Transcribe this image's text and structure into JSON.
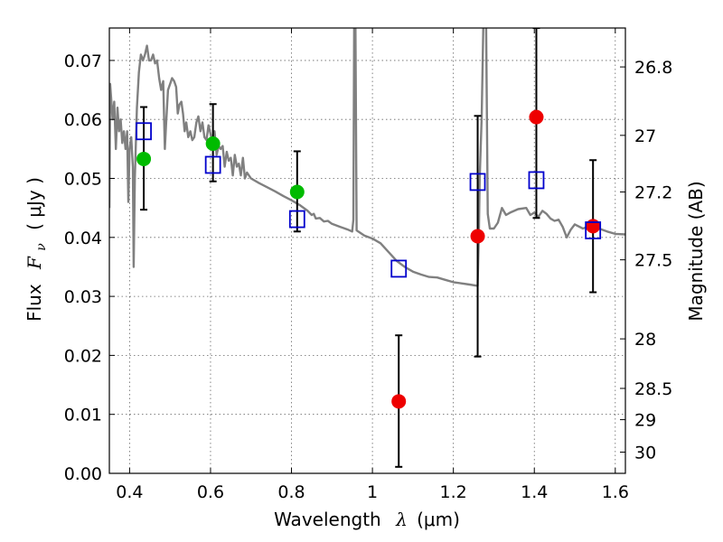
{
  "chart_data": {
    "type": "scatter",
    "xlabel": "Wavelength",
    "xlabel_symbol": "λ",
    "xlabel_unit": "(μm)",
    "ylabel": "Flux",
    "ylabel_symbol": "F",
    "ylabel_sub": "ν",
    "ylabel_unit": "( μJy )",
    "y2label": "Magnitude (AB)",
    "xlim": [
      0.35,
      1.625
    ],
    "ylim": [
      0.0,
      0.0755
    ],
    "grid": true,
    "xticks": [
      0.4,
      0.6,
      0.8,
      1.0,
      1.2,
      1.4,
      1.6
    ],
    "xtick_labels": [
      "0.4",
      "0.6",
      "0.8",
      "1",
      "1.2",
      "1.4",
      "1.6"
    ],
    "yticks": [
      0.0,
      0.01,
      0.02,
      0.03,
      0.04,
      0.05,
      0.06,
      0.07
    ],
    "ytick_labels": [
      "0.00",
      "0.01",
      "0.02",
      "0.03",
      "0.04",
      "0.05",
      "0.06",
      "0.07"
    ],
    "y2ticks": [
      {
        "label": "26.8",
        "flux": 0.0689
      },
      {
        "label": "27",
        "flux": 0.0573
      },
      {
        "label": "27.2",
        "flux": 0.0477
      },
      {
        "label": "27.5",
        "flux": 0.0362
      },
      {
        "label": "28",
        "flux": 0.0228
      },
      {
        "label": "28.5",
        "flux": 0.0144
      },
      {
        "label": "29",
        "flux": 0.0091
      },
      {
        "label": "30",
        "flux": 0.0036
      }
    ],
    "series": [
      {
        "marker": "circle",
        "color": "#00bb00",
        "points": [
          {
            "x": 0.435,
            "y": 0.0533
          },
          {
            "x": 0.606,
            "y": 0.0559
          },
          {
            "x": 0.814,
            "y": 0.0477
          }
        ]
      },
      {
        "marker": "circle",
        "color": "#ee0000",
        "points": [
          {
            "x": 1.065,
            "y": 0.0122
          },
          {
            "x": 1.26,
            "y": 0.0402
          },
          {
            "x": 1.405,
            "y": 0.0604
          },
          {
            "x": 1.545,
            "y": 0.0419
          }
        ]
      },
      {
        "marker": "open-square",
        "color": "#0000cc",
        "points": [
          {
            "x": 0.435,
            "y": 0.058
          },
          {
            "x": 0.606,
            "y": 0.0523
          },
          {
            "x": 0.814,
            "y": 0.0431
          },
          {
            "x": 1.065,
            "y": 0.0347
          },
          {
            "x": 1.26,
            "y": 0.0494
          },
          {
            "x": 1.405,
            "y": 0.0497
          },
          {
            "x": 1.545,
            "y": 0.0412
          }
        ]
      }
    ],
    "error_bars": [
      {
        "x": 0.435,
        "low": 0.0447,
        "high": 0.0621
      },
      {
        "x": 0.606,
        "low": 0.0495,
        "high": 0.0626
      },
      {
        "x": 0.814,
        "low": 0.041,
        "high": 0.0546
      },
      {
        "x": 1.065,
        "low": 0.0011,
        "high": 0.0234
      },
      {
        "x": 1.26,
        "low": 0.0198,
        "high": 0.0606
      },
      {
        "x": 1.405,
        "low": 0.0433,
        "high": 0.0755
      },
      {
        "x": 1.545,
        "low": 0.0307,
        "high": 0.0531
      }
    ],
    "model_spectrum": {
      "color": "#808080",
      "points": [
        [
          0.35,
          0.045
        ],
        [
          0.352,
          0.066
        ],
        [
          0.358,
          0.06
        ],
        [
          0.362,
          0.063
        ],
        [
          0.366,
          0.055
        ],
        [
          0.37,
          0.062
        ],
        [
          0.374,
          0.058
        ],
        [
          0.378,
          0.06
        ],
        [
          0.382,
          0.056
        ],
        [
          0.386,
          0.058
        ],
        [
          0.39,
          0.055
        ],
        [
          0.394,
          0.058
        ],
        [
          0.397,
          0.046
        ],
        [
          0.4,
          0.055
        ],
        [
          0.404,
          0.057
        ],
        [
          0.408,
          0.052
        ],
        [
          0.41,
          0.035
        ],
        [
          0.413,
          0.05
        ],
        [
          0.418,
          0.062
        ],
        [
          0.423,
          0.068
        ],
        [
          0.428,
          0.071
        ],
        [
          0.433,
          0.07
        ],
        [
          0.438,
          0.071
        ],
        [
          0.443,
          0.0725
        ],
        [
          0.448,
          0.07
        ],
        [
          0.453,
          0.07
        ],
        [
          0.458,
          0.071
        ],
        [
          0.463,
          0.0695
        ],
        [
          0.468,
          0.07
        ],
        [
          0.473,
          0.067
        ],
        [
          0.478,
          0.065
        ],
        [
          0.483,
          0.0665
        ],
        [
          0.487,
          0.055
        ],
        [
          0.49,
          0.059
        ],
        [
          0.495,
          0.065
        ],
        [
          0.5,
          0.066
        ],
        [
          0.505,
          0.067
        ],
        [
          0.51,
          0.0665
        ],
        [
          0.515,
          0.0655
        ],
        [
          0.519,
          0.061
        ],
        [
          0.523,
          0.0625
        ],
        [
          0.528,
          0.063
        ],
        [
          0.532,
          0.061
        ],
        [
          0.536,
          0.058
        ],
        [
          0.54,
          0.0595
        ],
        [
          0.545,
          0.057
        ],
        [
          0.55,
          0.058
        ],
        [
          0.555,
          0.0565
        ],
        [
          0.56,
          0.057
        ],
        [
          0.565,
          0.0595
        ],
        [
          0.57,
          0.0605
        ],
        [
          0.575,
          0.058
        ],
        [
          0.58,
          0.0595
        ],
        [
          0.585,
          0.057
        ],
        [
          0.59,
          0.0565
        ],
        [
          0.595,
          0.059
        ],
        [
          0.6,
          0.0575
        ],
        [
          0.605,
          0.056
        ],
        [
          0.61,
          0.058
        ],
        [
          0.615,
          0.054
        ],
        [
          0.62,
          0.0555
        ],
        [
          0.625,
          0.055
        ],
        [
          0.63,
          0.0555
        ],
        [
          0.635,
          0.052
        ],
        [
          0.64,
          0.0545
        ],
        [
          0.645,
          0.053
        ],
        [
          0.65,
          0.0535
        ],
        [
          0.655,
          0.0505
        ],
        [
          0.66,
          0.054
        ],
        [
          0.665,
          0.052
        ],
        [
          0.67,
          0.0525
        ],
        [
          0.675,
          0.0505
        ],
        [
          0.68,
          0.0535
        ],
        [
          0.685,
          0.05
        ],
        [
          0.69,
          0.051
        ],
        [
          0.7,
          0.05
        ],
        [
          0.72,
          0.0492
        ],
        [
          0.74,
          0.0485
        ],
        [
          0.76,
          0.0478
        ],
        [
          0.78,
          0.047
        ],
        [
          0.8,
          0.0463
        ],
        [
          0.82,
          0.0455
        ],
        [
          0.84,
          0.0445
        ],
        [
          0.85,
          0.0438
        ],
        [
          0.855,
          0.044
        ],
        [
          0.86,
          0.0432
        ],
        [
          0.87,
          0.0433
        ],
        [
          0.88,
          0.0427
        ],
        [
          0.89,
          0.0428
        ],
        [
          0.9,
          0.0423
        ],
        [
          0.92,
          0.0418
        ],
        [
          0.94,
          0.0413
        ],
        [
          0.95,
          0.041
        ],
        [
          0.953,
          0.043
        ],
        [
          0.955,
          0.076
        ],
        [
          0.958,
          0.076
        ],
        [
          0.961,
          0.0412
        ],
        [
          0.965,
          0.041
        ],
        [
          0.98,
          0.0403
        ],
        [
          1.0,
          0.0398
        ],
        [
          1.02,
          0.039
        ],
        [
          1.04,
          0.0375
        ],
        [
          1.06,
          0.036
        ],
        [
          1.08,
          0.035
        ],
        [
          1.1,
          0.0342
        ],
        [
          1.12,
          0.0337
        ],
        [
          1.14,
          0.0333
        ],
        [
          1.16,
          0.0332
        ],
        [
          1.18,
          0.0328
        ],
        [
          1.2,
          0.0324
        ],
        [
          1.22,
          0.0322
        ],
        [
          1.24,
          0.032
        ],
        [
          1.26,
          0.0318
        ],
        [
          1.263,
          0.041
        ],
        [
          1.265,
          0.05
        ],
        [
          1.27,
          0.0605
        ],
        [
          1.274,
          0.076
        ],
        [
          1.281,
          0.076
        ],
        [
          1.285,
          0.044
        ],
        [
          1.29,
          0.0415
        ],
        [
          1.3,
          0.0415
        ],
        [
          1.31,
          0.0425
        ],
        [
          1.32,
          0.045
        ],
        [
          1.33,
          0.0438
        ],
        [
          1.34,
          0.0442
        ],
        [
          1.36,
          0.0448
        ],
        [
          1.38,
          0.045
        ],
        [
          1.39,
          0.0438
        ],
        [
          1.4,
          0.0442
        ],
        [
          1.41,
          0.0435
        ],
        [
          1.42,
          0.0445
        ],
        [
          1.43,
          0.044
        ],
        [
          1.44,
          0.0432
        ],
        [
          1.45,
          0.0428
        ],
        [
          1.46,
          0.043
        ],
        [
          1.47,
          0.0418
        ],
        [
          1.48,
          0.04
        ],
        [
          1.49,
          0.0413
        ],
        [
          1.5,
          0.0422
        ],
        [
          1.52,
          0.0415
        ],
        [
          1.54,
          0.042
        ],
        [
          1.56,
          0.0415
        ],
        [
          1.58,
          0.041
        ],
        [
          1.6,
          0.0406
        ],
        [
          1.625,
          0.0405
        ]
      ]
    }
  }
}
